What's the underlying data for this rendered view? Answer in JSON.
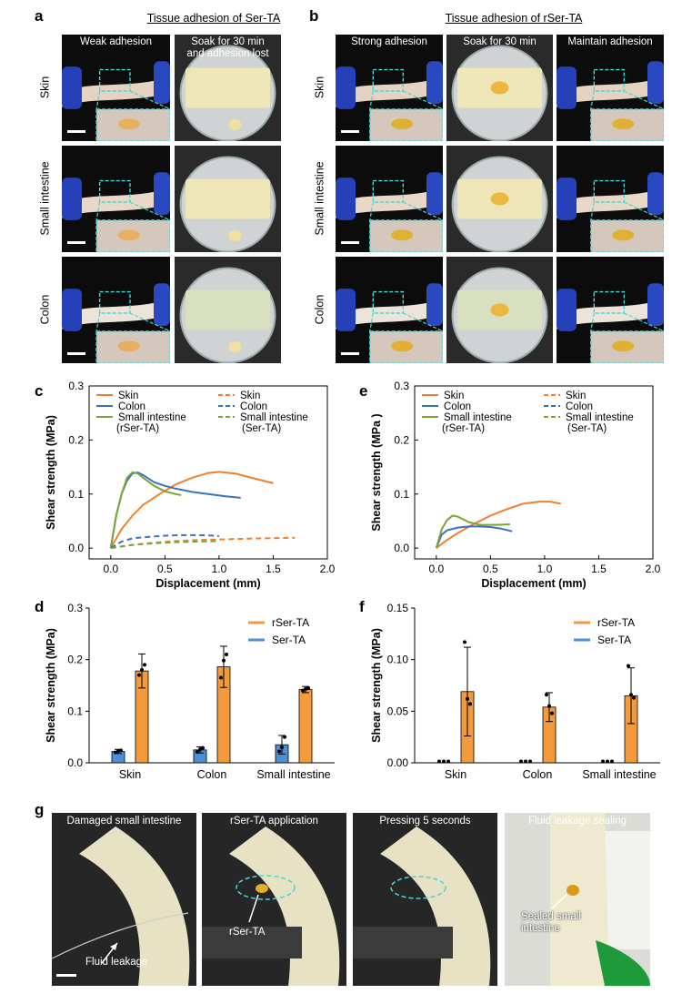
{
  "panels": {
    "a": {
      "letter": "a",
      "title": "Tissue adhesion of Ser-TA",
      "col_headers": [
        "Weak adhesion",
        "Soak for 30 min\nand adhesion lost"
      ],
      "row_labels": [
        "Skin",
        "Small intestine",
        "Colon"
      ]
    },
    "b": {
      "letter": "b",
      "title": "Tissue adhesion of rSer-TA",
      "col_headers": [
        "Strong adhesion",
        "Soak for 30 min",
        "Maintain adhesion"
      ],
      "row_labels": [
        "Skin",
        "Small intestine",
        "Colon"
      ]
    },
    "c_letter": "c",
    "e_letter": "e",
    "d_letter": "d",
    "f_letter": "f",
    "g": {
      "letter": "g",
      "headers": [
        "Damaged small intestine",
        "rSer-TA application",
        "Pressing 5 seconds",
        "Fluid leakage sealing"
      ],
      "annotations": [
        "Fluid leakage",
        "rSer-TA",
        "Sealed small\nintestine"
      ]
    }
  },
  "colors": {
    "skin": "#f07f2c",
    "colon": "#3a6fc6",
    "small_intestine": "#7aa534",
    "rser_bar": "#f39a3d",
    "ser_bar": "#4c8fd6",
    "cyan_box": "#48d6d6"
  },
  "chart_data": [
    {
      "id": "c",
      "type": "line",
      "xlabel": "Displacement (mm)",
      "ylabel": "Shear strength (MPa)",
      "xlim": [
        -0.2,
        2.0
      ],
      "ylim": [
        -0.02,
        0.3
      ],
      "xticks": [
        "0.0",
        "0.5",
        "1.0",
        "1.5",
        "2.0"
      ],
      "yticks": [
        "0.0",
        "0.1",
        "0.2",
        "0.3"
      ],
      "legend": {
        "solid": [
          "Skin",
          "Colon",
          "Small intestine",
          "(rSer-TA)"
        ],
        "dashed": [
          "Skin",
          "Colon",
          "Small intestine",
          "(Ser-TA)"
        ]
      },
      "series": [
        {
          "name": "Skin",
          "group": "rSer-TA",
          "color": "skin",
          "dash": false,
          "x": [
            0,
            0.1,
            0.2,
            0.3,
            0.45,
            0.6,
            0.75,
            0.9,
            1.0,
            1.15,
            1.3,
            1.5
          ],
          "y": [
            0,
            0.035,
            0.06,
            0.08,
            0.1,
            0.118,
            0.13,
            0.139,
            0.141,
            0.138,
            0.13,
            0.12
          ]
        },
        {
          "name": "Colon",
          "group": "rSer-TA",
          "color": "colon",
          "dash": false,
          "x": [
            0,
            0.05,
            0.1,
            0.15,
            0.2,
            0.25,
            0.3,
            0.4,
            0.5,
            0.6,
            0.75,
            0.9,
            1.05,
            1.2
          ],
          "y": [
            0,
            0.06,
            0.1,
            0.125,
            0.138,
            0.14,
            0.135,
            0.122,
            0.115,
            0.11,
            0.104,
            0.1,
            0.096,
            0.093
          ]
        },
        {
          "name": "Small intestine",
          "group": "rSer-TA",
          "color": "small_intestine",
          "dash": false,
          "x": [
            0,
            0.05,
            0.1,
            0.15,
            0.2,
            0.25,
            0.3,
            0.4,
            0.5,
            0.6,
            0.65
          ],
          "y": [
            0,
            0.06,
            0.1,
            0.13,
            0.14,
            0.138,
            0.13,
            0.115,
            0.105,
            0.1,
            0.098
          ]
        },
        {
          "name": "Skin",
          "group": "Ser-TA",
          "color": "skin",
          "dash": true,
          "x": [
            0,
            0.2,
            0.4,
            0.6,
            0.8,
            1.0,
            1.2,
            1.4,
            1.7
          ],
          "y": [
            0,
            0.006,
            0.01,
            0.013,
            0.015,
            0.016,
            0.017,
            0.018,
            0.019
          ]
        },
        {
          "name": "Colon",
          "group": "Ser-TA",
          "color": "colon",
          "dash": true,
          "x": [
            0,
            0.1,
            0.2,
            0.35,
            0.5,
            0.65,
            0.8,
            0.95,
            1.0
          ],
          "y": [
            0,
            0.012,
            0.018,
            0.021,
            0.023,
            0.024,
            0.024,
            0.023,
            0.022
          ]
        },
        {
          "name": "Small intestine",
          "group": "Ser-TA",
          "color": "small_intestine",
          "dash": true,
          "x": [
            0,
            0.2,
            0.4,
            0.6,
            0.8,
            1.0
          ],
          "y": [
            0,
            0.006,
            0.009,
            0.011,
            0.012,
            0.013
          ]
        }
      ]
    },
    {
      "id": "e",
      "type": "line",
      "xlabel": "Displacement (mm)",
      "ylabel": "Shear strength (MPa )",
      "xlim": [
        -0.2,
        2.0
      ],
      "ylim": [
        -0.02,
        0.3
      ],
      "xticks": [
        "0.0",
        "0.5",
        "1.0",
        "1.5",
        "2.0"
      ],
      "yticks": [
        "0.0",
        "0.1",
        "0.2",
        "0.3"
      ],
      "legend": {
        "solid": [
          "Skin",
          "Colon",
          "Small intestine",
          "(rSer-TA)"
        ],
        "dashed": [
          "Skin",
          "Colon",
          "Small intestine",
          "(Ser-TA)"
        ]
      },
      "series": [
        {
          "name": "Skin",
          "group": "rSer-TA",
          "color": "skin",
          "dash": false,
          "x": [
            0,
            0.1,
            0.2,
            0.35,
            0.5,
            0.65,
            0.8,
            0.95,
            1.05,
            1.15
          ],
          "y": [
            0,
            0.015,
            0.028,
            0.045,
            0.06,
            0.072,
            0.082,
            0.086,
            0.086,
            0.082
          ]
        },
        {
          "name": "Colon",
          "group": "rSer-TA",
          "color": "colon",
          "dash": false,
          "x": [
            0,
            0.05,
            0.1,
            0.2,
            0.3,
            0.4,
            0.5,
            0.6,
            0.7
          ],
          "y": [
            0,
            0.025,
            0.033,
            0.038,
            0.04,
            0.04,
            0.039,
            0.036,
            0.031
          ]
        },
        {
          "name": "Small intestine",
          "group": "rSer-TA",
          "color": "small_intestine",
          "dash": false,
          "x": [
            0,
            0.05,
            0.1,
            0.15,
            0.2,
            0.3,
            0.4,
            0.55,
            0.68
          ],
          "y": [
            0,
            0.035,
            0.052,
            0.06,
            0.058,
            0.048,
            0.043,
            0.043,
            0.044
          ]
        }
      ]
    },
    {
      "id": "d",
      "type": "bar",
      "ylabel": "Shear strength (MPa)",
      "ylim": [
        0,
        0.3
      ],
      "yticks": [
        "0.0",
        "0.1",
        "0.2",
        "0.3"
      ],
      "categories": [
        "Skin",
        "Colon",
        "Small intestine"
      ],
      "legend": [
        "rSer-TA",
        "Ser-TA"
      ],
      "series": [
        {
          "name": "Ser-TA",
          "color": "ser_bar",
          "values": [
            0.022,
            0.025,
            0.035
          ],
          "err": [
            0.004,
            0.006,
            0.018
          ],
          "points": [
            [
              0.02,
              0.023,
              0.024
            ],
            [
              0.021,
              0.026,
              0.029
            ],
            [
              0.022,
              0.03,
              0.05
            ]
          ]
        },
        {
          "name": "rSer-TA",
          "color": "rser_bar",
          "values": [
            0.178,
            0.186,
            0.142
          ],
          "err": [
            0.033,
            0.04,
            0.006
          ],
          "points": [
            [
              0.17,
              0.18,
              0.19
            ],
            [
              0.165,
              0.198,
              0.21
            ],
            [
              0.14,
              0.143,
              0.145
            ]
          ]
        }
      ]
    },
    {
      "id": "f",
      "type": "bar",
      "ylabel": "Shear strength (MPa)",
      "ylim": [
        0,
        0.15
      ],
      "yticks": [
        "0.00",
        "0.05",
        "0.10",
        "0.15"
      ],
      "categories": [
        "Skin",
        "Colon",
        "Small intestine"
      ],
      "legend": [
        "rSer-TA",
        "Ser-TA"
      ],
      "series": [
        {
          "name": "rSer-TA",
          "color": "rser_bar",
          "values": [
            0.069,
            0.054,
            0.065
          ],
          "err": [
            0.043,
            0.014,
            0.027
          ],
          "points": [
            [
              0.117,
              0.062,
              0.057
            ],
            [
              0.066,
              0.055,
              0.048
            ],
            [
              0.094,
              0.066,
              0.063
            ]
          ]
        },
        {
          "name": "Ser-TA",
          "color": "ser_bar",
          "values": [
            0,
            0,
            0
          ],
          "err": [
            0,
            0,
            0
          ],
          "points": [
            [
              0,
              0,
              0
            ],
            [
              0,
              0,
              0
            ],
            [
              0,
              0,
              0
            ]
          ]
        }
      ]
    }
  ]
}
